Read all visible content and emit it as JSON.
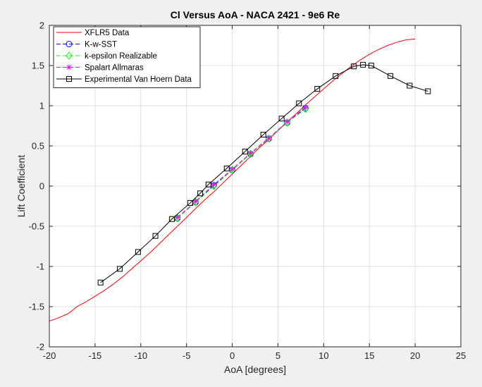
{
  "chart_data": {
    "type": "line",
    "title": "Cl Versus AoA - NACA 2421 - 9e6 Re",
    "xlabel": "AoA [degrees]",
    "ylabel": "Lift Coefficient",
    "xlim": [
      -20,
      25
    ],
    "ylim": [
      -2,
      2
    ],
    "xticks": [
      -20,
      -15,
      -10,
      -5,
      0,
      5,
      10,
      15,
      20,
      25
    ],
    "yticks": [
      -2,
      -1.5,
      -1,
      -0.5,
      0,
      0.5,
      1,
      1.5,
      2
    ],
    "xtick_labels": [
      "-20",
      "-15",
      "-10",
      "-5",
      "0",
      "5",
      "10",
      "15",
      "20",
      "25"
    ],
    "ytick_labels": [
      "-2",
      "-1.5",
      "-1",
      "-0.5",
      "0",
      "0.5",
      "1",
      "1.5",
      "2"
    ],
    "grid": true,
    "legend_position": "top-left",
    "series": [
      {
        "name": "XFLR5 Data",
        "color": "#ff0000",
        "line": "solid",
        "marker": "none",
        "x": [
          -20,
          -19,
          -18,
          -17.5,
          -17,
          -16,
          -15,
          -14,
          -13,
          -12,
          -11,
          -10,
          -9,
          -8,
          -7,
          -6,
          -5,
          -4,
          -3,
          -2,
          -1,
          0,
          1,
          2,
          3,
          4,
          5,
          6,
          7,
          8,
          9,
          10,
          11,
          12,
          13,
          14,
          15,
          16,
          17,
          18,
          19,
          20
        ],
        "y": [
          -1.68,
          -1.64,
          -1.59,
          -1.55,
          -1.5,
          -1.44,
          -1.37,
          -1.3,
          -1.22,
          -1.13,
          -1.03,
          -0.93,
          -0.83,
          -0.72,
          -0.61,
          -0.5,
          -0.39,
          -0.28,
          -0.17,
          -0.07,
          0.04,
          0.15,
          0.26,
          0.37,
          0.48,
          0.58,
          0.69,
          0.8,
          0.9,
          1.01,
          1.11,
          1.21,
          1.31,
          1.4,
          1.49,
          1.57,
          1.64,
          1.7,
          1.75,
          1.79,
          1.82,
          1.83
        ]
      },
      {
        "name": "K-w-SST",
        "color": "#0000ff",
        "line": "dashed",
        "marker": "circle",
        "x": [
          -6,
          -4,
          -2,
          0,
          2,
          4,
          6,
          8
        ],
        "y": [
          -0.4,
          -0.2,
          0.01,
          0.2,
          0.4,
          0.59,
          0.79,
          0.97
        ]
      },
      {
        "name": "k-epsilon Realizable",
        "color": "#00ff00",
        "line": "dashed",
        "marker": "diamond",
        "x": [
          -6,
          -4,
          -2,
          0,
          2,
          4,
          6,
          8
        ],
        "y": [
          -0.4,
          -0.2,
          0.0,
          0.2,
          0.4,
          0.59,
          0.79,
          0.96
        ]
      },
      {
        "name": "Spalart Allmaras",
        "color": "#ff00ff",
        "line": "dashed",
        "marker": "asterisk",
        "x": [
          -6,
          -4,
          -2,
          0,
          2,
          4,
          6,
          8
        ],
        "y": [
          -0.39,
          -0.19,
          0.02,
          0.21,
          0.41,
          0.6,
          0.8,
          0.98
        ]
      },
      {
        "name": "Experimental Van Hoern Data",
        "color": "#000000",
        "line": "solid",
        "marker": "square",
        "x": [
          -14.4,
          -12.3,
          -10.3,
          -8.4,
          -6.6,
          -4.6,
          -3.5,
          -2.6,
          -0.6,
          1.4,
          3.4,
          5.4,
          7.3,
          9.3,
          11.3,
          13.3,
          14.3,
          15.2,
          17.3,
          19.4,
          21.4
        ],
        "y": [
          -1.2,
          -1.03,
          -0.82,
          -0.62,
          -0.41,
          -0.21,
          -0.09,
          0.02,
          0.22,
          0.43,
          0.64,
          0.84,
          1.03,
          1.21,
          1.37,
          1.49,
          1.51,
          1.5,
          1.37,
          1.25,
          1.18
        ]
      }
    ]
  }
}
